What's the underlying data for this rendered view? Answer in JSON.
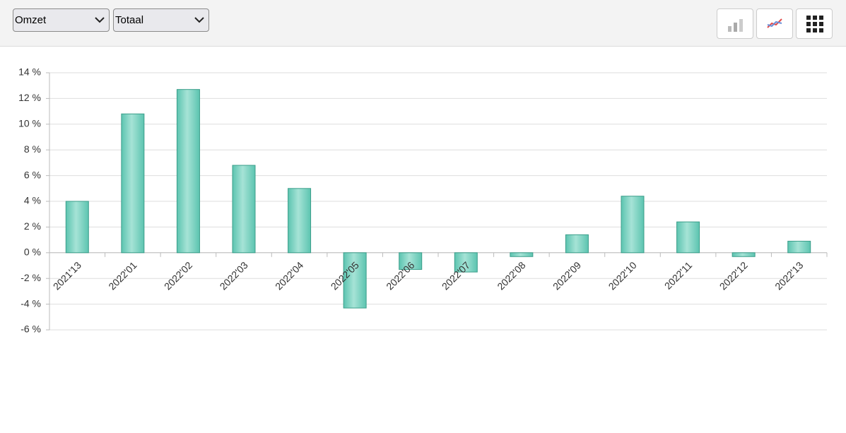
{
  "toolbar": {
    "measure": "Omzet",
    "aggregate": "Totaal"
  },
  "chart_data": {
    "type": "bar",
    "categories": [
      "2021'13",
      "2022'01",
      "2022'02",
      "2022'03",
      "2022'04",
      "2022'05",
      "2022'06",
      "2022'07",
      "2022'08",
      "2022'09",
      "2022'10",
      "2022'11",
      "2022'12",
      "2022'13"
    ],
    "values": [
      4.0,
      10.8,
      12.7,
      6.8,
      5.0,
      -4.3,
      -1.3,
      -1.5,
      -0.3,
      1.4,
      4.4,
      2.4,
      -0.3,
      0.9
    ],
    "color": "#5cc4b0",
    "ylim": [
      -6,
      14
    ],
    "yticks": [
      {
        "value": -6,
        "label": "-6 %"
      },
      {
        "value": -4,
        "label": "-4 %"
      },
      {
        "value": -2,
        "label": "-2 %"
      },
      {
        "value": 0,
        "label": "0 %"
      },
      {
        "value": 2,
        "label": "2 %"
      },
      {
        "value": 4,
        "label": "4 %"
      },
      {
        "value": 6,
        "label": "6 %"
      },
      {
        "value": 8,
        "label": "8 %"
      },
      {
        "value": 10,
        "label": "10 %"
      },
      {
        "value": 12,
        "label": "12 %"
      },
      {
        "value": 14,
        "label": "14 %"
      }
    ],
    "grid": true
  }
}
